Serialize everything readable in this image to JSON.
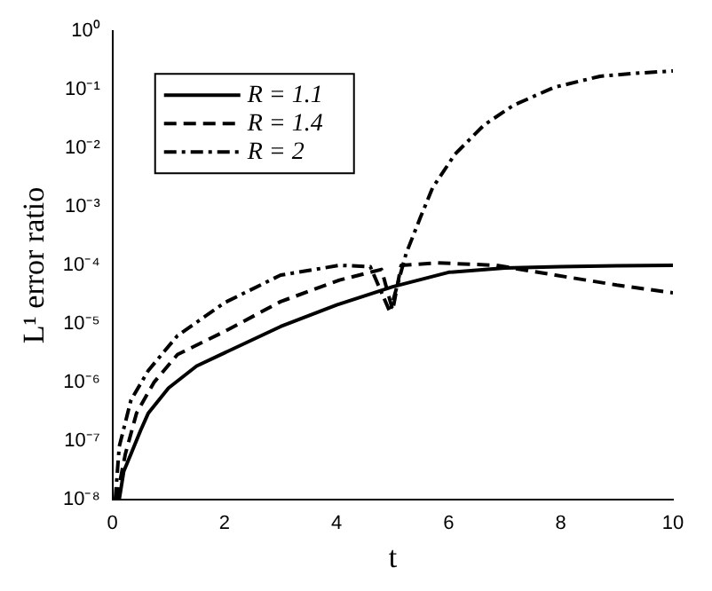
{
  "chart_data": {
    "type": "line",
    "xlabel": "t",
    "ylabel": "L¹ error ratio",
    "log": "y",
    "xlim": [
      0,
      10
    ],
    "xticks": [
      0,
      2,
      4,
      6,
      8,
      10
    ],
    "ylim": [
      1e-08,
      1
    ],
    "yticks": [
      {
        "value": 1e-08,
        "label": "10⁻⁸"
      },
      {
        "value": 1e-07,
        "label": "10⁻⁷"
      },
      {
        "value": 1e-06,
        "label": "10⁻⁶"
      },
      {
        "value": 1e-05,
        "label": "10⁻⁵"
      },
      {
        "value": 0.0001,
        "label": "10⁻⁴"
      },
      {
        "value": 0.001,
        "label": "10⁻³"
      },
      {
        "value": 0.01,
        "label": "10⁻²"
      },
      {
        "value": 0.1,
        "label": "10⁻¹"
      },
      {
        "value": 1,
        "label": "10⁰"
      }
    ],
    "grid": false,
    "legend": "top left",
    "marker": "none",
    "series": [
      {
        "name": "R = 1.1",
        "color": "#000000",
        "line_style": "solid",
        "x": [
          0.12,
          0.2,
          0.33,
          0.5,
          0.64,
          1,
          1.5,
          2,
          3,
          4,
          5,
          6,
          7,
          8,
          9,
          10
        ],
        "values": [
          1e-08,
          3e-08,
          6e-08,
          1.5e-07,
          3e-07,
          8e-07,
          1.9e-06,
          3.2e-06,
          9e-06,
          2.1e-05,
          4.3e-05,
          7.6e-05,
          9e-05,
          9.5e-05,
          9.8e-05,
          0.0001
        ]
      },
      {
        "name": "R = 1.4",
        "color": "#000000",
        "line_style": "dashed",
        "x": [
          0.07,
          0.23,
          0.43,
          0.74,
          1.16,
          2,
          3,
          4.05,
          4.8,
          5,
          5.15,
          5.8,
          6.85,
          7.9,
          9,
          10
        ],
        "values": [
          1e-08,
          6e-08,
          3e-07,
          1e-06,
          3e-06,
          7.4e-06,
          2.4e-05,
          5.6e-05,
          8.5e-05,
          1.7e-05,
          0.0001,
          0.00011,
          0.0001,
          6.8e-05,
          4.6e-05,
          3.4e-05
        ]
      },
      {
        "name": "R = 2",
        "color": "#000000",
        "line_style": "dashdot",
        "x": [
          0.05,
          0.12,
          0.33,
          0.64,
          1.16,
          2,
          3,
          4.05,
          4.6,
          4.95,
          5.24,
          5.5,
          5.71,
          6.11,
          6.63,
          7.15,
          7.88,
          8.7,
          9.3,
          10
        ],
        "values": [
          1e-08,
          8e-08,
          5e-07,
          1.6e-06,
          6.3e-06,
          2.3e-05,
          6.8e-05,
          0.0001,
          9.5e-05,
          1.6e-05,
          0.00016,
          0.00068,
          0.0021,
          0.0079,
          0.025,
          0.054,
          0.11,
          0.17,
          0.19,
          0.21
        ]
      }
    ]
  }
}
